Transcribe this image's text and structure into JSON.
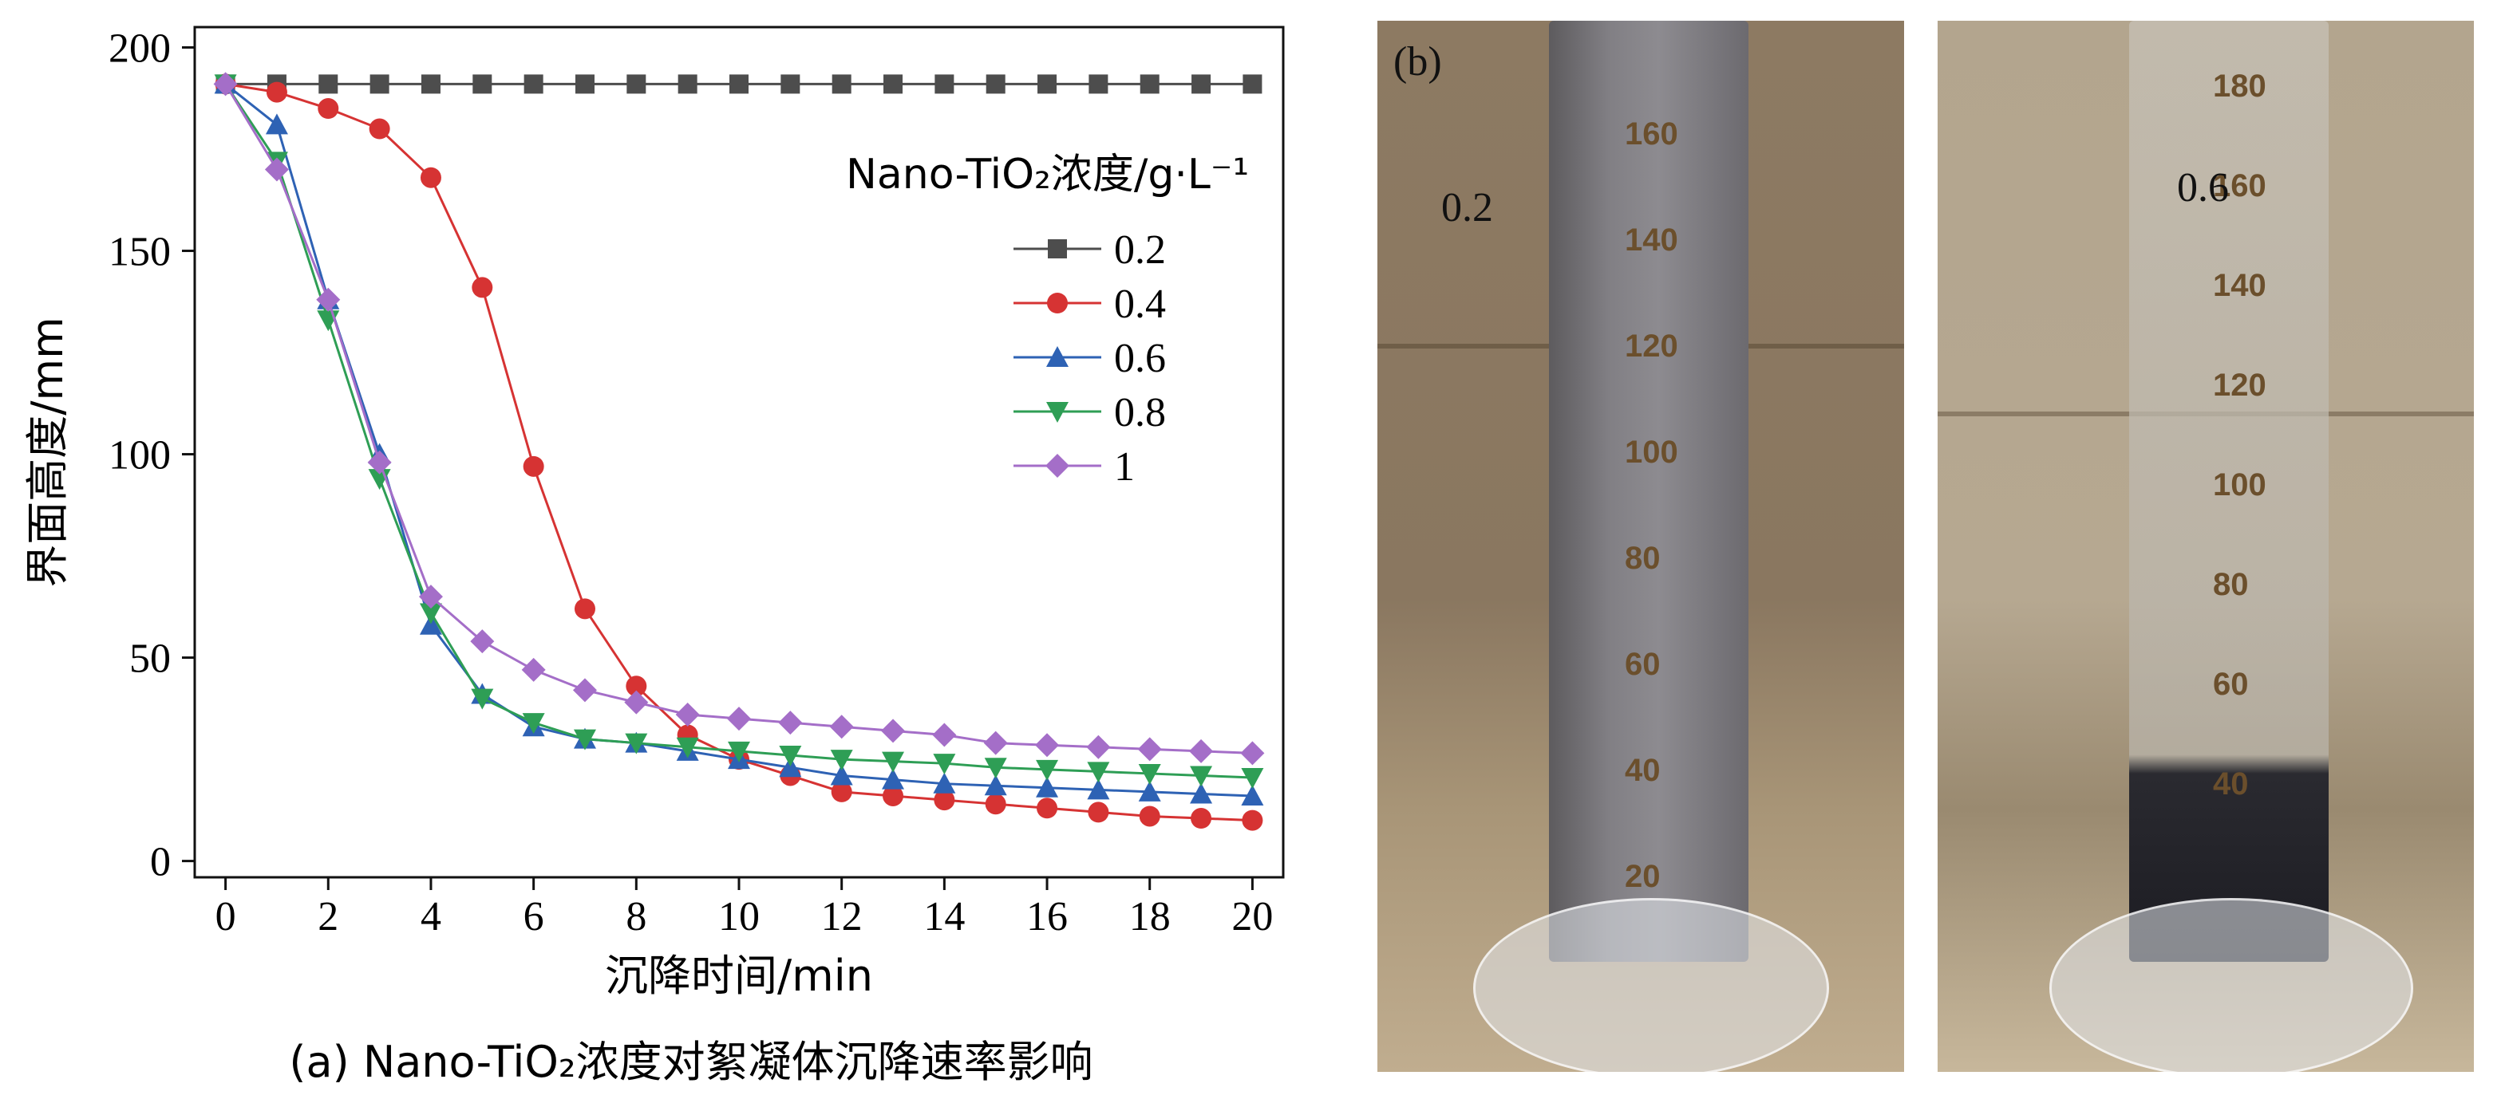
{
  "chart_data": {
    "type": "line",
    "title": "",
    "caption": "(a) Nano-TiO₂浓度对絮凝体沉降速率影响",
    "xlabel": "沉降时间/min",
    "ylabel": "界面高度/mm",
    "xlim": [
      -0.6,
      20.6
    ],
    "ylim": [
      -4,
      205
    ],
    "x_ticks": [
      0,
      2,
      4,
      6,
      8,
      10,
      12,
      14,
      16,
      18,
      20
    ],
    "y_ticks": [
      0,
      50,
      100,
      150,
      200
    ],
    "legend_title": "Nano-TiO₂浓度/g·L⁻¹",
    "legend_position": "top-right",
    "x": [
      0,
      1,
      2,
      3,
      4,
      5,
      6,
      7,
      8,
      9,
      10,
      11,
      12,
      13,
      14,
      15,
      16,
      17,
      18,
      19,
      20
    ],
    "series": [
      {
        "name": "0.2",
        "color": "#4d4d4d",
        "marker": "square",
        "values": [
          191,
          191,
          191,
          191,
          191,
          191,
          191,
          191,
          191,
          191,
          191,
          191,
          191,
          191,
          191,
          191,
          191,
          191,
          191,
          191,
          191
        ]
      },
      {
        "name": "0.4",
        "color": "#d63333",
        "marker": "circle",
        "values": [
          191,
          189,
          185,
          180,
          168,
          141,
          97,
          62,
          43,
          31,
          25,
          21,
          17,
          16,
          15,
          14,
          13,
          12,
          11,
          10.5,
          10
        ]
      },
      {
        "name": "0.6",
        "color": "#2e62b4",
        "marker": "triangle-up",
        "values": [
          191,
          181,
          138,
          100,
          58,
          41,
          33,
          30,
          29,
          27,
          25,
          23,
          21,
          20,
          19,
          18.5,
          18,
          17.5,
          17,
          16.5,
          16
        ]
      },
      {
        "name": "0.8",
        "color": "#2e9e55",
        "marker": "triangle-down",
        "values": [
          191,
          172,
          133,
          94,
          61,
          40,
          34,
          30,
          29,
          28,
          27,
          26,
          25,
          24.5,
          24,
          23,
          22.5,
          22,
          21.5,
          21,
          20.5
        ]
      },
      {
        "name": "1",
        "color": "#a46ec8",
        "marker": "diamond",
        "values": [
          191,
          170,
          138,
          98,
          65,
          54,
          47,
          42,
          39,
          36,
          35,
          34,
          33,
          32,
          31,
          29,
          28.5,
          28,
          27.5,
          27,
          26.5
        ]
      }
    ]
  },
  "photos": {
    "panel_label": "(b)",
    "left_label": "0.2",
    "right_label": "0.6",
    "left_scale": [
      "160",
      "140",
      "120",
      "100",
      "80",
      "60",
      "40",
      "20"
    ],
    "right_scale": [
      "180",
      "160",
      "140",
      "120",
      "100",
      "80",
      "60",
      "40"
    ]
  }
}
